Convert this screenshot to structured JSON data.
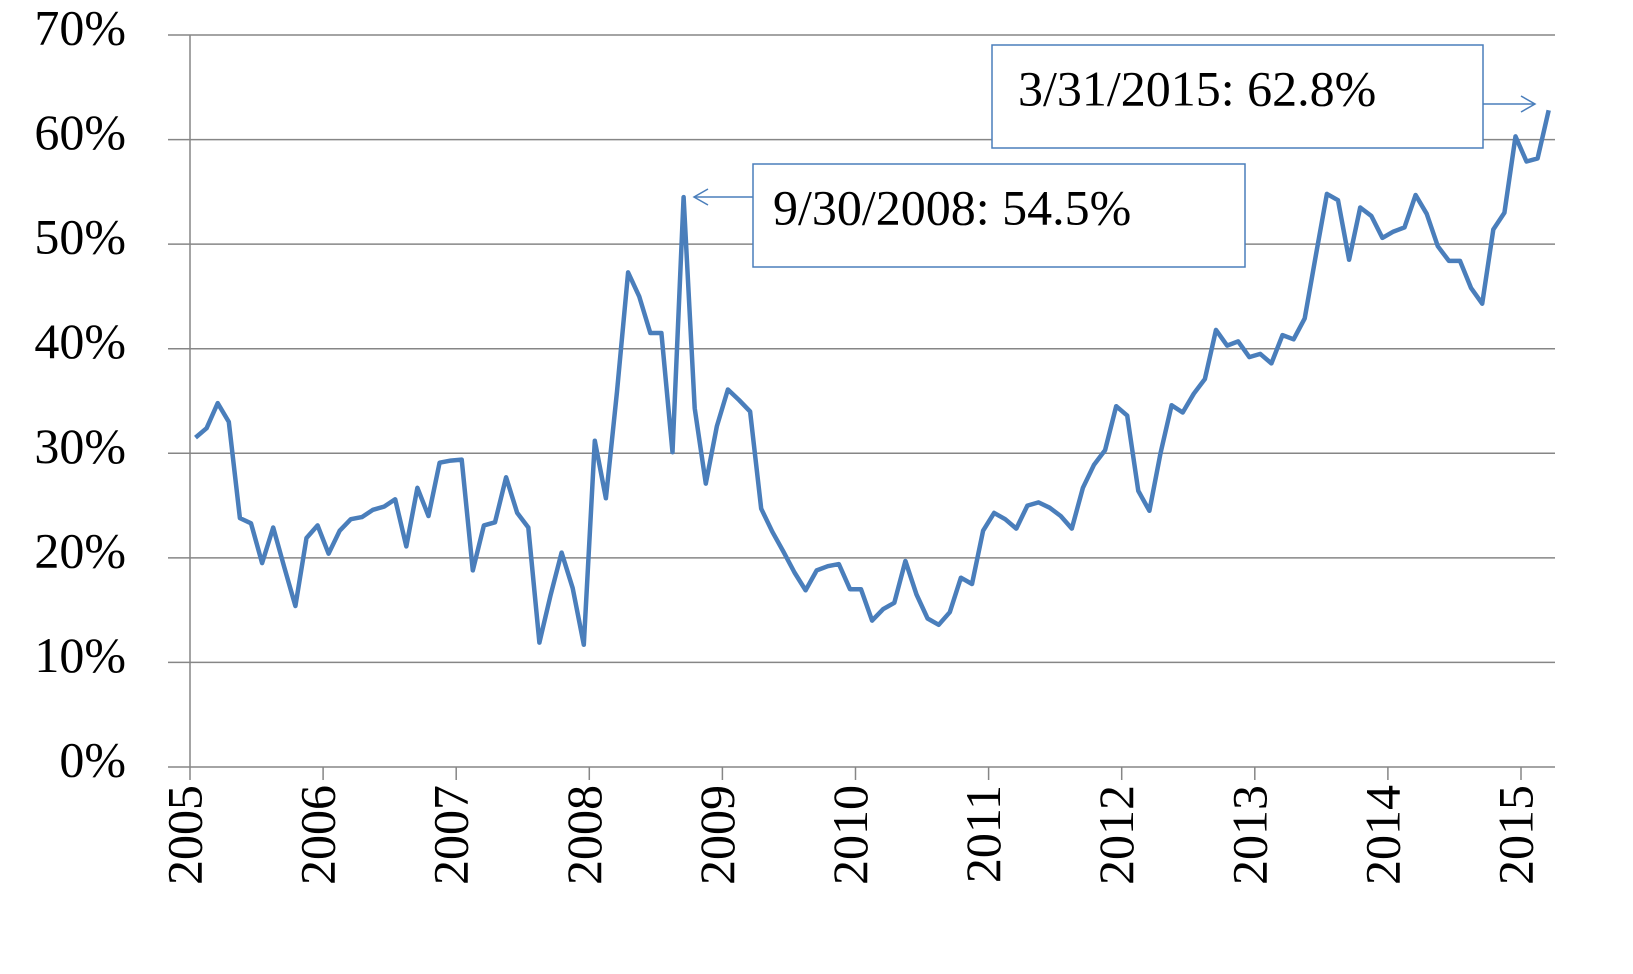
{
  "chart_data": {
    "type": "line",
    "x": [
      "2005-01",
      "2005-02",
      "2005-03",
      "2005-04",
      "2005-05",
      "2005-06",
      "2005-07",
      "2005-08",
      "2005-09",
      "2005-10",
      "2005-11",
      "2005-12",
      "2006-01",
      "2006-02",
      "2006-03",
      "2006-04",
      "2006-05",
      "2006-06",
      "2006-07",
      "2006-08",
      "2006-09",
      "2006-10",
      "2006-11",
      "2006-12",
      "2007-01",
      "2007-02",
      "2007-03",
      "2007-04",
      "2007-05",
      "2007-06",
      "2007-07",
      "2007-08",
      "2007-09",
      "2007-10",
      "2007-11",
      "2007-12",
      "2008-01",
      "2008-02",
      "2008-03",
      "2008-04",
      "2008-05",
      "2008-06",
      "2008-07",
      "2008-08",
      "2008-09",
      "2008-10",
      "2008-11",
      "2008-12",
      "2009-01",
      "2009-02",
      "2009-03",
      "2009-04",
      "2009-05",
      "2009-06",
      "2009-07",
      "2009-08",
      "2009-09",
      "2009-10",
      "2009-11",
      "2009-12",
      "2010-01",
      "2010-02",
      "2010-03",
      "2010-04",
      "2010-05",
      "2010-06",
      "2010-07",
      "2010-08",
      "2010-09",
      "2010-10",
      "2010-11",
      "2010-12",
      "2011-01",
      "2011-02",
      "2011-03",
      "2011-04",
      "2011-05",
      "2011-06",
      "2011-07",
      "2011-08",
      "2011-09",
      "2011-10",
      "2011-11",
      "2011-12",
      "2012-01",
      "2012-02",
      "2012-03",
      "2012-04",
      "2012-05",
      "2012-06",
      "2012-07",
      "2012-08",
      "2012-09",
      "2012-10",
      "2012-11",
      "2012-12",
      "2013-01",
      "2013-02",
      "2013-03",
      "2013-04",
      "2013-05",
      "2013-06",
      "2013-07",
      "2013-08",
      "2013-09",
      "2013-10",
      "2013-11",
      "2013-12",
      "2014-01",
      "2014-02",
      "2014-03",
      "2014-04",
      "2014-05",
      "2014-06",
      "2014-07",
      "2014-08",
      "2014-09",
      "2014-10",
      "2014-11",
      "2014-12",
      "2015-01",
      "2015-02",
      "2015-03"
    ],
    "values": [
      31.5,
      32.4,
      34.8,
      33.0,
      23.8,
      23.3,
      19.5,
      22.9,
      19.1,
      15.4,
      21.9,
      23.1,
      20.4,
      22.6,
      23.7,
      23.9,
      24.6,
      24.9,
      25.6,
      21.1,
      26.7,
      24.0,
      29.1,
      29.3,
      29.4,
      18.8,
      23.1,
      23.4,
      27.7,
      24.3,
      22.9,
      11.9,
      16.4,
      20.5,
      17.1,
      11.7,
      31.2,
      25.7,
      35.9,
      47.3,
      45.0,
      41.5,
      41.5,
      30.1,
      54.5,
      34.3,
      27.1,
      32.6,
      36.1,
      35.1,
      34.0,
      24.7,
      22.5,
      20.6,
      18.6,
      16.9,
      18.8,
      19.2,
      19.4,
      17.0,
      17.0,
      14.0,
      15.1,
      15.7,
      19.7,
      16.5,
      14.2,
      13.6,
      14.8,
      18.1,
      17.5,
      22.6,
      24.3,
      23.7,
      22.8,
      25.0,
      25.3,
      24.8,
      24.0,
      22.8,
      26.7,
      28.9,
      30.3,
      34.5,
      33.6,
      26.4,
      24.5,
      30.0,
      34.6,
      33.9,
      35.7,
      37.1,
      41.8,
      40.3,
      40.7,
      39.2,
      39.5,
      38.6,
      41.3,
      40.9,
      42.9,
      48.9,
      54.8,
      54.2,
      48.5,
      53.5,
      52.7,
      50.6,
      51.2,
      51.6,
      54.7,
      52.9,
      49.8,
      48.4,
      48.4,
      45.8,
      44.3,
      51.4,
      53.0,
      60.3,
      57.9,
      58.2,
      62.8
    ],
    "color": "#4a7ebb",
    "xlim": [
      2005,
      2015.25
    ],
    "xticks": [
      2005,
      2006,
      2007,
      2008,
      2009,
      2010,
      2011,
      2012,
      2013,
      2014,
      2015
    ],
    "ylim": [
      0,
      70
    ],
    "yticks": [
      {
        "value": 0,
        "label": "0%"
      },
      {
        "value": 10,
        "label": "10%"
      },
      {
        "value": 20,
        "label": "20%"
      },
      {
        "value": 30,
        "label": "30%"
      },
      {
        "value": 40,
        "label": "40%"
      },
      {
        "value": 50,
        "label": "50%"
      },
      {
        "value": 60,
        "label": "60%"
      },
      {
        "value": 70,
        "label": "70%"
      }
    ],
    "grid": true,
    "annotations": [
      {
        "text": "9/30/2008: 54.5%"
      },
      {
        "text": "3/31/2015: 62.8%"
      }
    ]
  }
}
